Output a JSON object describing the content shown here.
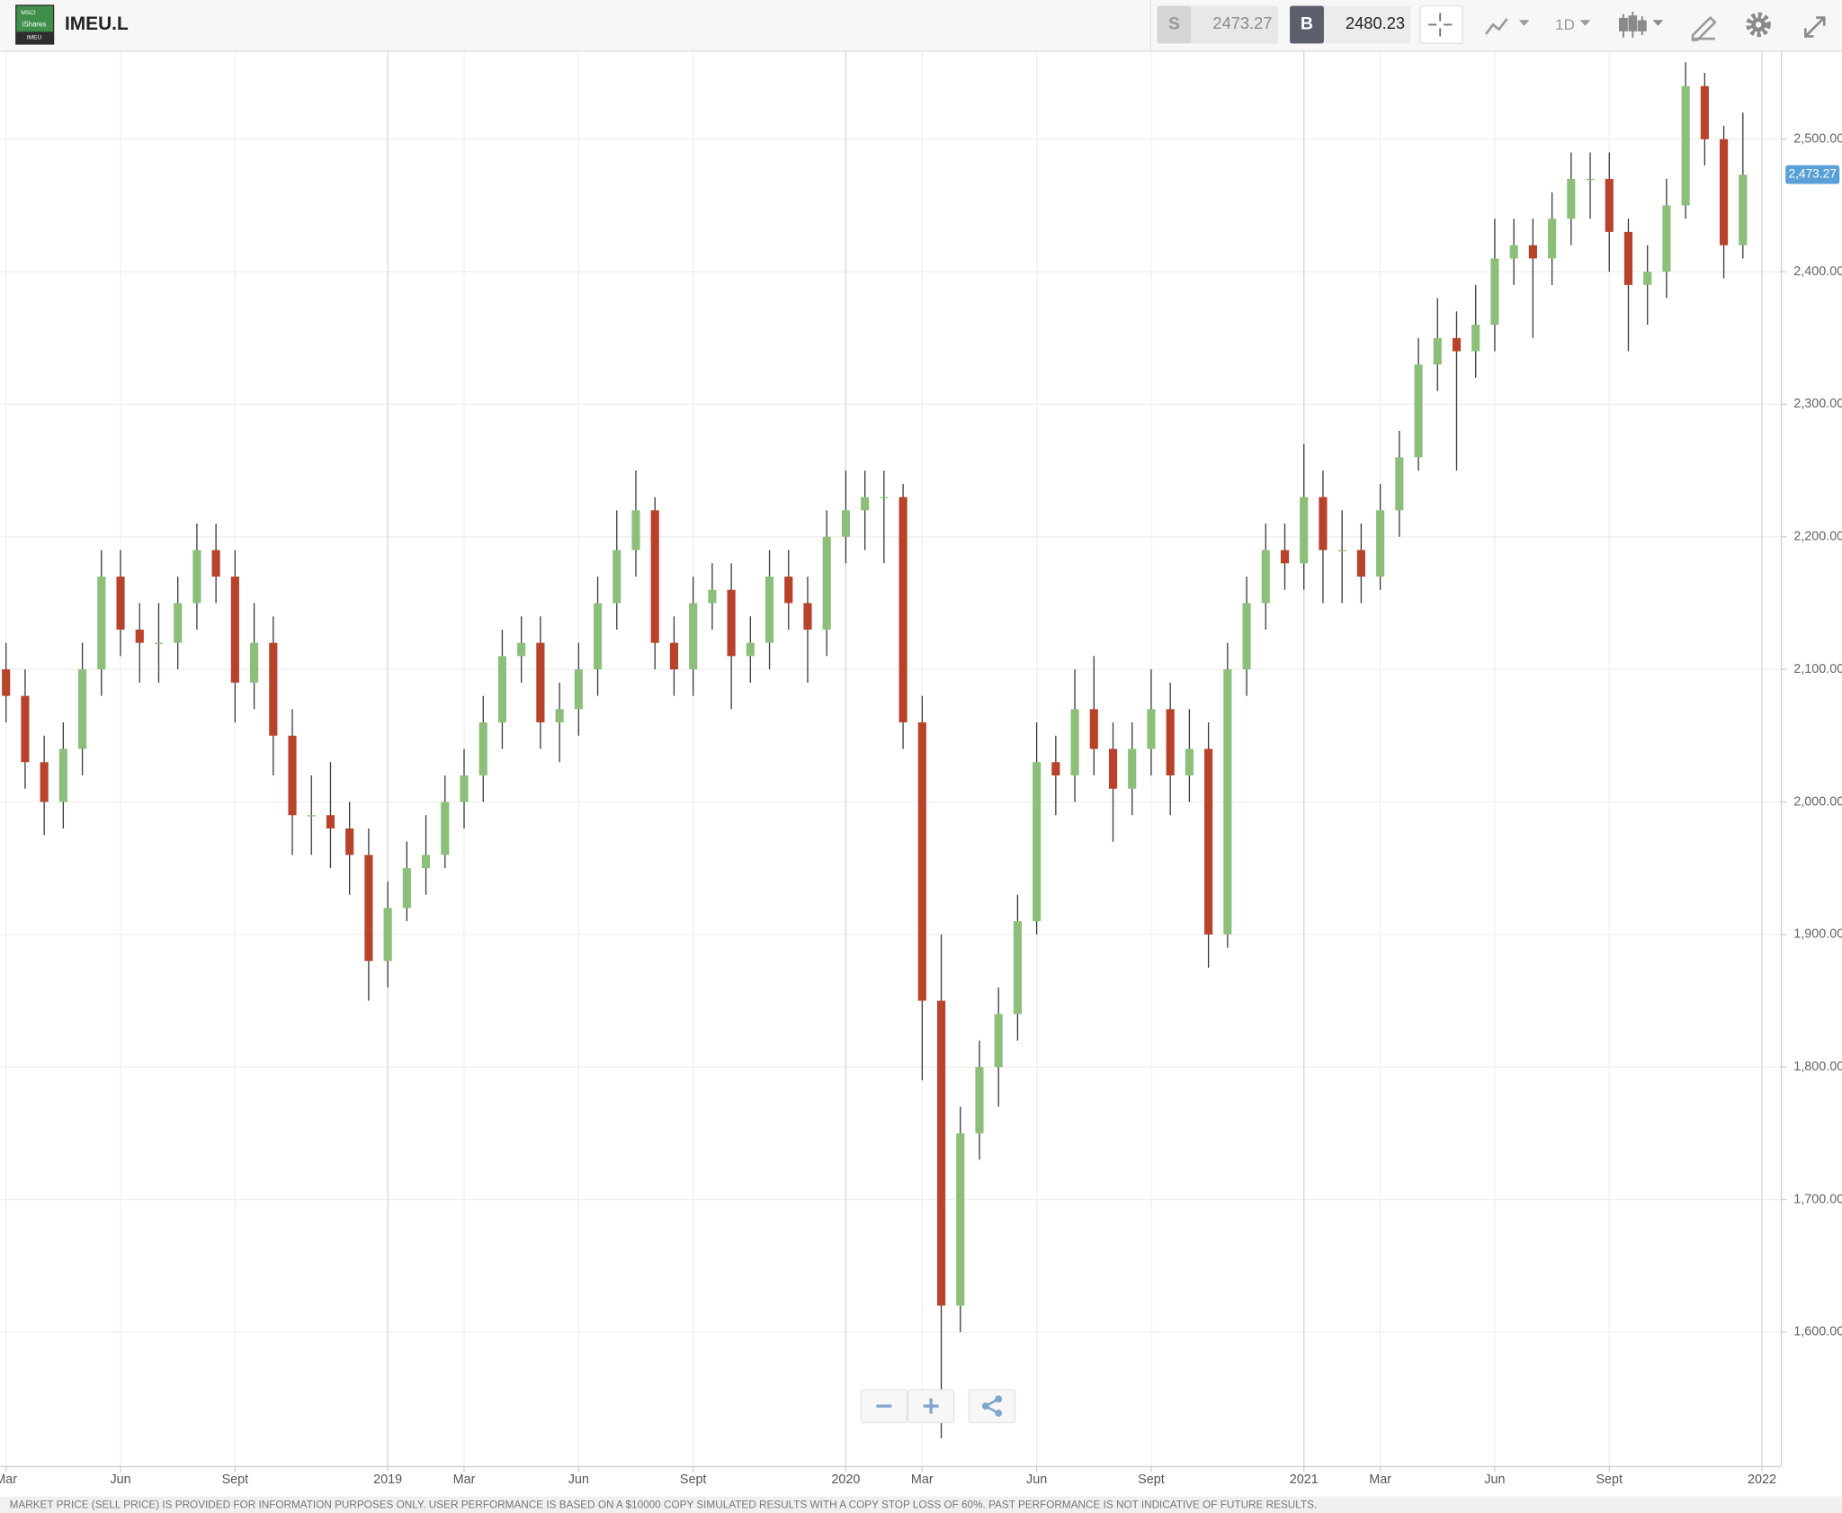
{
  "header": {
    "symbol": "IMEU.L",
    "logo_text": [
      "MSCI",
      "iShares",
      "IMEU"
    ],
    "sell_label": "S",
    "sell_price": "2473.27",
    "buy_label": "B",
    "buy_price": "2480.23",
    "interval": "1D"
  },
  "footer": {
    "disclaimer": "MARKET PRICE (SELL PRICE) IS PROVIDED FOR INFORMATION PURPOSES ONLY. USER PERFORMANCE IS BASED ON A $10000 COPY SIMULATED RESULTS WITH A COPY STOP LOSS OF 60%. PAST PERFORMANCE IS NOT INDICATIVE OF FUTURE RESULTS."
  },
  "chart_data": {
    "type": "candlestick",
    "categories": [
      "Mar",
      null,
      null,
      null,
      null,
      null,
      "Jun",
      null,
      null,
      null,
      null,
      null,
      "Sept",
      null,
      null,
      null,
      null,
      null,
      null,
      null,
      "2019",
      null,
      null,
      null,
      "Mar",
      null,
      null,
      null,
      null,
      null,
      "Jun",
      null,
      null,
      null,
      null,
      null,
      "Sept",
      null,
      null,
      null,
      null,
      null,
      null,
      null,
      "2020",
      null,
      null,
      null,
      "Mar",
      null,
      null,
      null,
      null,
      null,
      "Jun",
      null,
      null,
      null,
      null,
      null,
      "Sept",
      null,
      null,
      null,
      null,
      null,
      null,
      null,
      "2021",
      null,
      null,
      null,
      "Mar",
      null,
      null,
      null,
      null,
      null,
      "Jun",
      null,
      null,
      null,
      null,
      null,
      "Sept",
      null,
      null,
      null,
      null,
      null,
      null,
      null,
      "2022"
    ],
    "open": [
      2100,
      2080,
      2030,
      2000,
      2040,
      2100,
      2170,
      2130,
      2120,
      2120,
      2150,
      2190,
      2170,
      2090,
      2120,
      2050,
      1990,
      1990,
      1980,
      1960,
      1880,
      1920,
      1950,
      1960,
      2000,
      2020,
      2060,
      2110,
      2120,
      2060,
      2070,
      2100,
      2150,
      2190,
      2220,
      2120,
      2100,
      2150,
      2160,
      2110,
      2120,
      2170,
      2150,
      2130,
      2200,
      2220,
      2230,
      2230,
      2060,
      1850,
      1620,
      1750,
      1800,
      1840,
      1910,
      2030,
      2020,
      2070,
      2040,
      2010,
      2040,
      2070,
      2020,
      2040,
      1900,
      2100,
      2150,
      2190,
      2180,
      2230,
      2190,
      2190,
      2170,
      2220,
      2260,
      2330,
      2350,
      2340,
      2360,
      2410,
      2420,
      2410,
      2440,
      2470,
      2470,
      2430,
      2390,
      2400,
      2450,
      2540,
      2500,
      2420,
      null
    ],
    "high": [
      2120,
      2100,
      2050,
      2060,
      2120,
      2190,
      2190,
      2150,
      2150,
      2170,
      2210,
      2210,
      2190,
      2150,
      2140,
      2070,
      2020,
      2030,
      2000,
      1980,
      1940,
      1970,
      1990,
      2020,
      2040,
      2080,
      2130,
      2140,
      2140,
      2090,
      2120,
      2170,
      2220,
      2250,
      2230,
      2140,
      2170,
      2180,
      2180,
      2140,
      2190,
      2190,
      2170,
      2220,
      2250,
      2250,
      2250,
      2240,
      2080,
      1900,
      1770,
      1820,
      1860,
      1930,
      2060,
      2050,
      2100,
      2110,
      2060,
      2060,
      2100,
      2090,
      2070,
      2060,
      2120,
      2170,
      2210,
      2210,
      2270,
      2250,
      2220,
      2210,
      2240,
      2280,
      2350,
      2380,
      2370,
      2390,
      2440,
      2440,
      2440,
      2460,
      2490,
      2490,
      2490,
      2440,
      2420,
      2470,
      2558,
      2550,
      2510,
      2520,
      null
    ],
    "low": [
      2060,
      2010,
      1975,
      1980,
      2020,
      2080,
      2110,
      2090,
      2090,
      2100,
      2130,
      2150,
      2060,
      2070,
      2020,
      1960,
      1960,
      1950,
      1930,
      1850,
      1860,
      1910,
      1930,
      1950,
      1980,
      2000,
      2040,
      2090,
      2040,
      2030,
      2050,
      2080,
      2130,
      2170,
      2100,
      2080,
      2080,
      2130,
      2070,
      2090,
      2100,
      2130,
      2090,
      2110,
      2180,
      2190,
      2180,
      2040,
      1790,
      1520,
      1600,
      1730,
      1770,
      1820,
      1900,
      1990,
      2000,
      2020,
      1970,
      1990,
      2020,
      1990,
      2000,
      1875,
      1890,
      2080,
      2130,
      2160,
      2160,
      2150,
      2150,
      2150,
      2160,
      2200,
      2250,
      2310,
      2250,
      2320,
      2340,
      2390,
      2350,
      2390,
      2420,
      2440,
      2400,
      2340,
      2360,
      2380,
      2440,
      2480,
      2395,
      2410,
      null
    ],
    "close": [
      2080,
      2030,
      2000,
      2040,
      2100,
      2170,
      2130,
      2120,
      2120,
      2150,
      2190,
      2170,
      2090,
      2120,
      2050,
      1990,
      1990,
      1980,
      1960,
      1880,
      1920,
      1950,
      1960,
      2000,
      2020,
      2060,
      2110,
      2120,
      2060,
      2070,
      2100,
      2150,
      2190,
      2220,
      2120,
      2100,
      2150,
      2160,
      2110,
      2120,
      2170,
      2150,
      2130,
      2200,
      2220,
      2230,
      2230,
      2060,
      1850,
      1620,
      1750,
      1800,
      1840,
      1910,
      2030,
      2020,
      2070,
      2040,
      2010,
      2040,
      2070,
      2020,
      2040,
      1900,
      2100,
      2150,
      2190,
      2180,
      2230,
      2190,
      2190,
      2170,
      2220,
      2260,
      2330,
      2350,
      2340,
      2360,
      2410,
      2420,
      2410,
      2440,
      2470,
      2470,
      2430,
      2390,
      2400,
      2450,
      2540,
      2500,
      2420,
      2473.27,
      null
    ],
    "up_color": "#8cc07a",
    "down_color": "#b8432a",
    "wick_color": "#3a3a3a",
    "ylim": [
      1499,
      2566
    ],
    "yticks": [
      {
        "value": 1600,
        "label": "1,600.00"
      },
      {
        "value": 1700,
        "label": "1,700.00"
      },
      {
        "value": 1800,
        "label": "1,800.00"
      },
      {
        "value": 1900,
        "label": "1,900.00"
      },
      {
        "value": 2000,
        "label": "2,000.00"
      },
      {
        "value": 2100,
        "label": "2,100.00"
      },
      {
        "value": 2200,
        "label": "2,200.00"
      },
      {
        "value": 2300,
        "label": "2,300.00"
      },
      {
        "value": 2400,
        "label": "2,400.00"
      },
      {
        "value": 2500,
        "label": "2,500.00"
      }
    ],
    "last_price": {
      "value": 2473.27,
      "label": "2,473.27"
    },
    "grid": true
  }
}
